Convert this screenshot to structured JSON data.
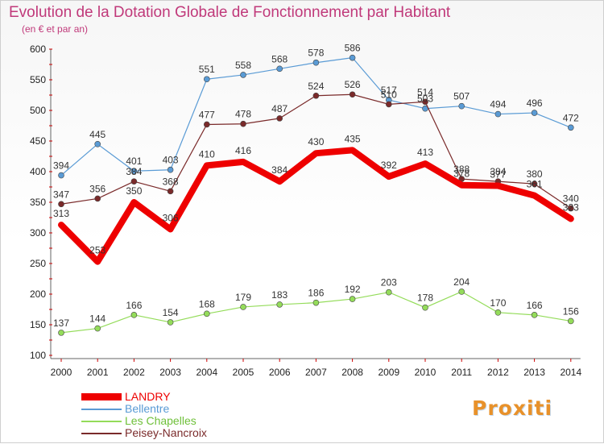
{
  "logo_text": "Proxiti",
  "colors": {
    "title": "#c0397a",
    "landry": "#ee0000",
    "bellentre": "#5a9bd5",
    "les_chapelles": "#94dc5a",
    "peisey": "#7a2a2a"
  },
  "chart_data": {
    "type": "line",
    "title": "Evolution de la Dotation Globale de Fonctionnement par Habitant",
    "subtitle": "(en € et par an)",
    "xlabel": "",
    "ylabel": "",
    "ylim": [
      100,
      600
    ],
    "yticks": [
      "100",
      "150",
      "200",
      "250",
      "300",
      "350",
      "400",
      "450",
      "500",
      "550",
      "600"
    ],
    "grid": false,
    "legend_position": "bottom-left",
    "categories": [
      "2000",
      "2001",
      "2002",
      "2003",
      "2004",
      "2005",
      "2006",
      "2007",
      "2008",
      "2009",
      "2010",
      "2011",
      "2012",
      "2013",
      "2014"
    ],
    "series": [
      {
        "name": "LANDRY",
        "key": "landry",
        "values": [
          313,
          253,
          350,
          306,
          410,
          416,
          384,
          430,
          435,
          392,
          413,
          378,
          377,
          361,
          323
        ],
        "labels": [
          "313",
          "253",
          "350",
          "306",
          "410",
          "416",
          "384",
          "430",
          "435",
          "392",
          "413",
          "378",
          "377",
          "361",
          "323"
        ]
      },
      {
        "name": "Bellentre",
        "key": "bellentre",
        "values": [
          394,
          445,
          401,
          403,
          551,
          558,
          568,
          578,
          586,
          517,
          503,
          507,
          494,
          496,
          472
        ],
        "labels": [
          "394",
          "445",
          "401",
          "403",
          "551",
          "558",
          "568",
          "578",
          "586",
          "517",
          "503",
          "507",
          "494",
          "496",
          "472"
        ]
      },
      {
        "name": "Les Chapelles",
        "key": "les_chapelles",
        "values": [
          137,
          144,
          166,
          154,
          168,
          179,
          183,
          186,
          192,
          203,
          178,
          204,
          170,
          166,
          156
        ],
        "labels": [
          "137",
          "144",
          "166",
          "154",
          "168",
          "179",
          "183",
          "186",
          "192",
          "203",
          "178",
          "204",
          "170",
          "166",
          "156"
        ]
      },
      {
        "name": "Peisey-Nancroix",
        "key": "peisey",
        "values": [
          347,
          356,
          384,
          368,
          477,
          478,
          487,
          524,
          526,
          510,
          514,
          388,
          384,
          380,
          340
        ],
        "labels": [
          "347",
          "356",
          "384",
          "368",
          "477",
          "478",
          "487",
          "524",
          "526",
          "510",
          "514",
          "388",
          "384",
          "380",
          "340"
        ]
      }
    ]
  }
}
